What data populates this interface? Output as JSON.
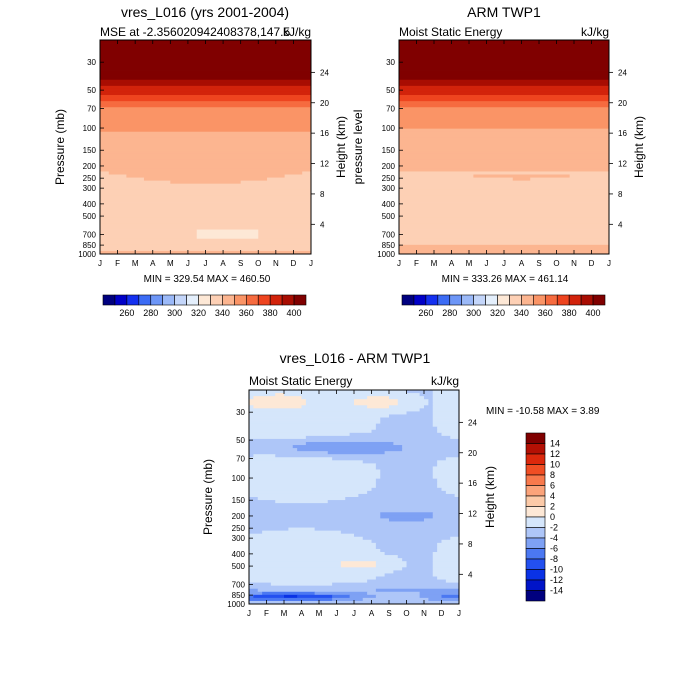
{
  "chart_data": [
    {
      "type": "heatmap",
      "title": "vres_L016 (yrs 2001-2004)",
      "left_string": "MSE at -2.356020942408378,147.5",
      "right_string": "kJ/kg",
      "ylabel": "Pressure (mb)",
      "ylabel_right": "Height (km)",
      "x_ticks": [
        "J",
        "F",
        "M",
        "A",
        "M",
        "J",
        "J",
        "A",
        "S",
        "O",
        "N",
        "D",
        "J"
      ],
      "y_ticks": [
        "30",
        "50",
        "70",
        "100",
        "150",
        "200",
        "250",
        "300",
        "400",
        "500",
        "700",
        "850",
        "1000"
      ],
      "y_ticks_values": [
        30,
        50,
        70,
        100,
        150,
        200,
        250,
        300,
        400,
        500,
        700,
        850,
        1000
      ],
      "y_right_ticks": [
        "24",
        "20",
        "16",
        "12",
        "8",
        "4"
      ],
      "y_right_values": [
        24,
        20,
        16,
        12,
        8,
        4
      ],
      "ylim": [
        1000,
        20
      ],
      "min_max_label": "MIN = 329.54  MAX = 460.50",
      "profile_kJkg": {
        "p": [
          1000,
          850,
          700,
          500,
          300,
          200,
          150,
          100,
          70,
          50,
          30,
          20
        ],
        "mse": [
          346,
          333,
          330,
          331,
          337,
          341,
          345,
          351,
          360,
          385,
          430,
          460
        ]
      }
    },
    {
      "type": "heatmap",
      "title": "ARM TWP1",
      "left_string": "Moist Static Energy",
      "right_string": "kJ/kg",
      "ylabel": "pressure level",
      "ylabel_right": "Height (km)",
      "x_ticks": [
        "J",
        "F",
        "M",
        "A",
        "M",
        "J",
        "J",
        "A",
        "S",
        "O",
        "N",
        "D",
        "J"
      ],
      "y_ticks": [
        "30",
        "50",
        "70",
        "100",
        "150",
        "200",
        "250",
        "300",
        "400",
        "500",
        "700",
        "850",
        "1000"
      ],
      "y_ticks_values": [
        30,
        50,
        70,
        100,
        150,
        200,
        250,
        300,
        400,
        500,
        700,
        850,
        1000
      ],
      "y_right_ticks": [
        "24",
        "20",
        "16",
        "12",
        "8",
        "4"
      ],
      "y_right_values": [
        24,
        20,
        16,
        12,
        8,
        4
      ],
      "ylim": [
        1000,
        20
      ],
      "min_max_label": "MIN = 333.26  MAX = 461.14",
      "profile_kJkg": {
        "p": [
          1000,
          850,
          700,
          500,
          300,
          200,
          150,
          100,
          70,
          50,
          30,
          20
        ],
        "mse": [
          349,
          341,
          332,
          332,
          336,
          341,
          345,
          350,
          360,
          385,
          430,
          461
        ]
      }
    },
    {
      "type": "heatmap",
      "title": "vres_L016 - ARM TWP1",
      "left_string": "Moist Static Energy",
      "right_string": "kJ/kg",
      "ylabel": "Pressure (mb)",
      "ylabel_right": "Height (km)",
      "x_ticks": [
        "J",
        "F",
        "M",
        "A",
        "M",
        "J",
        "J",
        "A",
        "S",
        "O",
        "N",
        "D",
        "J"
      ],
      "y_ticks": [
        "30",
        "50",
        "70",
        "100",
        "150",
        "200",
        "250",
        "300",
        "400",
        "500",
        "700",
        "850",
        "1000"
      ],
      "y_ticks_values": [
        30,
        50,
        70,
        100,
        150,
        200,
        250,
        300,
        400,
        500,
        700,
        850,
        1000
      ],
      "y_right_ticks": [
        "24",
        "20",
        "16",
        "12",
        "8",
        "4"
      ],
      "y_right_values": [
        24,
        20,
        16,
        12,
        8,
        4
      ],
      "ylim": [
        1000,
        20
      ],
      "min_max_label": "MIN = -10.58  MAX =   3.89"
    }
  ],
  "colorbars": [
    {
      "orientation": "horizontal",
      "labels": [
        "260",
        "280",
        "300",
        "320",
        "340",
        "360",
        "380",
        "400"
      ],
      "levels": [
        250,
        260,
        270,
        280,
        290,
        300,
        310,
        320,
        330,
        340,
        350,
        360,
        370,
        380,
        390,
        400,
        410
      ],
      "colors": [
        "#00007f",
        "#0000c8",
        "#1430f0",
        "#3c6cf5",
        "#6d96f7",
        "#9bb9f8",
        "#c4d6fa",
        "#e4effc",
        "#fde8d6",
        "#fdd0b5",
        "#fcb590",
        "#fa9466",
        "#f66b3f",
        "#ee441f",
        "#d2230b",
        "#a80d02",
        "#800000"
      ]
    },
    {
      "orientation": "vertical",
      "labels": [
        "14",
        "12",
        "10",
        "8",
        "6",
        "4",
        "2",
        "0",
        "-2",
        "-4",
        "-6",
        "-8",
        "-10",
        "-12",
        "-14"
      ],
      "levels": [
        -14,
        -12,
        -10,
        -8,
        -6,
        -4,
        -2,
        0,
        2,
        4,
        6,
        8,
        10,
        12,
        14
      ],
      "colors": [
        "#00007f",
        "#0014c8",
        "#0a32e6",
        "#2350f0",
        "#4b78f2",
        "#7ea1f4",
        "#aec6f8",
        "#d5e6fb",
        "#fde8d6",
        "#fccaa8",
        "#fba37a",
        "#f8794c",
        "#f04e24",
        "#dc280c",
        "#b41004",
        "#800000"
      ]
    }
  ]
}
